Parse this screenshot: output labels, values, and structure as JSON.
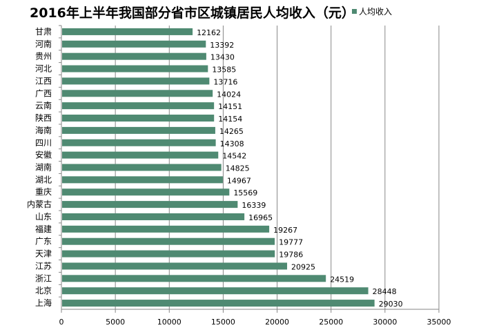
{
  "chart_data": {
    "type": "bar",
    "orientation": "horizontal",
    "title": "2016年上半年我国部分省市区城镇居民人均收入（元）",
    "legend": {
      "position": "top-right",
      "entries": [
        "人均收入"
      ]
    },
    "categories": [
      "甘肃",
      "河南",
      "贵州",
      "河北",
      "江西",
      "广西",
      "云南",
      "陕西",
      "海南",
      "四川",
      "安徽",
      "湖南",
      "湖北",
      "重庆",
      "内蒙古",
      "山东",
      "福建",
      "广东",
      "天津",
      "江苏",
      "浙江",
      "北京",
      "上海"
    ],
    "series": [
      {
        "name": "人均收入",
        "values": [
          12162,
          13392,
          13430,
          13585,
          13716,
          14024,
          14151,
          14154,
          14265,
          14308,
          14542,
          14825,
          14967,
          15569,
          16339,
          16965,
          19267,
          19777,
          19786,
          20925,
          24519,
          28448,
          29030
        ]
      }
    ],
    "xlim": [
      0,
      35000
    ],
    "xticks": [
      "0",
      "5000",
      "10000",
      "15000",
      "20000",
      "25000",
      "30000",
      "35000"
    ],
    "grid": "vertical",
    "bar_color": "#4f8a72",
    "data_labels": true
  }
}
